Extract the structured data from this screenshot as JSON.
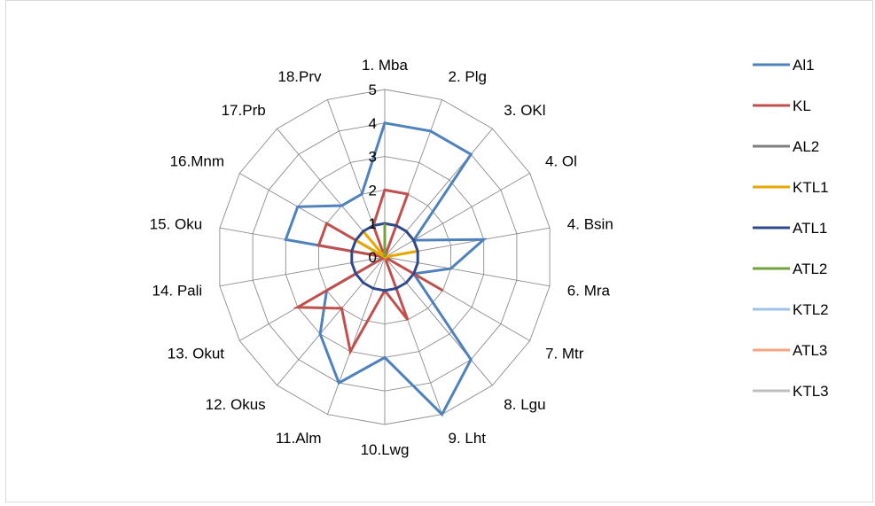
{
  "chart_data": {
    "type": "radar",
    "title": "",
    "categories": [
      "1. Mba",
      "2. Plg",
      "3. OKl",
      "4. Ol",
      "4. Bsin",
      "6. Mra",
      "7. Mtr",
      "8. Lgu",
      "9. Lht",
      "10.Lwg",
      "11.Alm",
      "12. Okus",
      "13. Okut",
      "14. Pali",
      "15. Oku",
      "16.Mnm",
      "17.Prb",
      "18.Prv"
    ],
    "r_ticks": [
      "0",
      "1",
      "2",
      "3",
      "4",
      "5"
    ],
    "r_range": [
      0,
      5
    ],
    "legend_position": "right",
    "series": [
      {
        "name": "Al1",
        "color": "#4f81bd",
        "values": [
          4,
          4,
          4,
          1,
          3,
          2,
          1,
          4,
          5,
          3,
          4,
          3,
          2,
          0,
          3,
          3,
          2,
          2
        ]
      },
      {
        "name": "KL",
        "color": "#c0504d",
        "values": [
          2,
          2,
          0,
          0,
          0,
          0,
          2,
          0,
          2,
          1,
          3,
          2,
          3,
          0,
          2,
          2,
          0,
          1
        ]
      },
      {
        "name": "AL2",
        "color": "#7f7f7f",
        "values": [
          0,
          0,
          0,
          0,
          0,
          0,
          0,
          0,
          0,
          0,
          0,
          0,
          0,
          0,
          0,
          0,
          0,
          0
        ]
      },
      {
        "name": "KTL1",
        "color": "#e5a800",
        "values": [
          1,
          1,
          1,
          1,
          1,
          0,
          0,
          0,
          0,
          0,
          0,
          0,
          0,
          0,
          0,
          1,
          1,
          0
        ]
      },
      {
        "name": "ATL1",
        "color": "#2e4a8c",
        "values": [
          1,
          1,
          1,
          1,
          1,
          1,
          1,
          1,
          1,
          1,
          1,
          1,
          1,
          1,
          1,
          1,
          1,
          1
        ]
      },
      {
        "name": "ATL2",
        "color": "#70a33a",
        "values": [
          1,
          0,
          0,
          0,
          0,
          0,
          0,
          0,
          0,
          0,
          0,
          0,
          0,
          0,
          0,
          0,
          0,
          0
        ]
      },
      {
        "name": "KTL2",
        "color": "#9dc3e6",
        "values": [
          0,
          0,
          0,
          0,
          0,
          0,
          0,
          0,
          0,
          0,
          0,
          0,
          0,
          0,
          0,
          0,
          0,
          0
        ]
      },
      {
        "name": "ATL3",
        "color": "#f4a582",
        "values": [
          0,
          0,
          0,
          0,
          0,
          0,
          0,
          0,
          0,
          0,
          0,
          0,
          0,
          0,
          0,
          0,
          0,
          0
        ]
      },
      {
        "name": "KTL3",
        "color": "#bfbfbf",
        "values": [
          0,
          0,
          0,
          0,
          0,
          0,
          0,
          0,
          0,
          0,
          0,
          0,
          0,
          0,
          0,
          0,
          0,
          0
        ]
      }
    ]
  }
}
